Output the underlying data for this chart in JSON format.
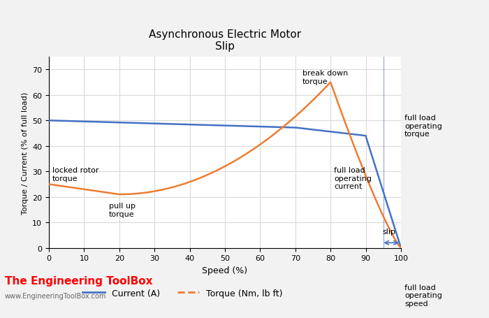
{
  "title_line1": "Asynchronous Electric Motor",
  "title_line2": "Slip",
  "xlabel": "Speed (%)",
  "ylabel": "Torque / Current (% of full load)",
  "xlim": [
    0,
    100
  ],
  "ylim": [
    0,
    75
  ],
  "yticks": [
    0,
    10,
    20,
    30,
    40,
    50,
    60,
    70
  ],
  "xticks": [
    0,
    10,
    20,
    30,
    40,
    50,
    60,
    70,
    80,
    90,
    100
  ],
  "current_color": "#4472C4",
  "torque_color": "#ED7D31",
  "bg_color": "#FFFFFF",
  "fig_bg": "#F2F2F2",
  "grid_color": "#D9D9D9",
  "legend_current": "Current (A)",
  "legend_torque": "Torque (Nm, lb ft)",
  "watermark1": "The Engineering ToolBox",
  "watermark2": "www.EngineeringToolBox.com",
  "figsize": [
    7.0,
    4.56
  ],
  "dpi": 100
}
